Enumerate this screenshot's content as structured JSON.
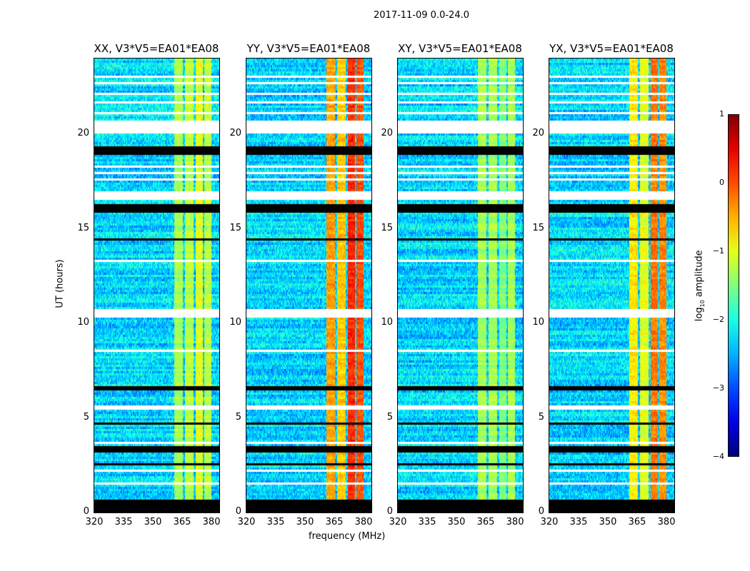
{
  "chart_data": {
    "type": "heatmap",
    "suptitle": "2017-11-09 0.0-24.0",
    "xlabel": "frequency (MHz)",
    "ylabel": "UT (hours)",
    "xlim": [
      320,
      384
    ],
    "ylim": [
      0,
      24
    ],
    "xticks": [
      "320",
      "335",
      "350",
      "365",
      "380"
    ],
    "xtick_values": [
      320,
      335,
      350,
      365,
      380
    ],
    "yticks": [
      "0",
      "5",
      "10",
      "15",
      "20"
    ],
    "ytick_values": [
      0,
      5,
      10,
      15,
      20
    ],
    "colorbar": {
      "label": "log10 amplitude",
      "label_main": "log",
      "label_sub": "10",
      "label_rest": " amplitude",
      "range": [
        -4,
        1
      ],
      "ticks": [
        "1",
        "0",
        "−1",
        "−2",
        "−3",
        "−4"
      ],
      "tick_values": [
        1,
        0,
        -1,
        -2,
        -3,
        -4
      ],
      "colormap": "jet"
    },
    "background_level": -2.3,
    "rfi_bands_mhz": [
      [
        361,
        365.5
      ],
      [
        366.5,
        371
      ],
      [
        372,
        375.5
      ],
      [
        376.5,
        380
      ]
    ],
    "flagged_zero_hours": [
      [
        0,
        0.7
      ],
      [
        2.5,
        2.6
      ],
      [
        3.2,
        3.5
      ],
      [
        4.6,
        4.7
      ],
      [
        6.4,
        6.7
      ],
      [
        14.4,
        14.5
      ],
      [
        15.9,
        16.3
      ],
      [
        18.9,
        19.4
      ]
    ],
    "missing_hours": [
      [
        1.0,
        1.05
      ],
      [
        1.5,
        1.55
      ],
      [
        1.8,
        1.85
      ],
      [
        2.2,
        2.25
      ],
      [
        3.6,
        3.7
      ],
      [
        5.4,
        5.65
      ],
      [
        8.5,
        8.6
      ],
      [
        10.3,
        10.7
      ],
      [
        13.3,
        13.35
      ],
      [
        16.5,
        17.0
      ],
      [
        17.6,
        17.7
      ],
      [
        17.9,
        18.0
      ],
      [
        18.2,
        18.3
      ],
      [
        20.0,
        20.7
      ],
      [
        21.1,
        21.2
      ],
      [
        21.6,
        21.7
      ],
      [
        22.1,
        22.2
      ],
      [
        22.6,
        22.7
      ],
      [
        23.0,
        23.1
      ],
      [
        23.5,
        23.6
      ]
    ],
    "panels": [
      {
        "title": "XX, V3*V5=EA01*EA08",
        "rfi_levels": [
          -1.3,
          -1.2,
          -1.0,
          -1.2
        ]
      },
      {
        "title": "YY, V3*V5=EA01*EA08",
        "rfi_levels": [
          -0.4,
          -0.6,
          0.2,
          0.0
        ]
      },
      {
        "title": "XY, V3*V5=EA01*EA08",
        "rfi_levels": [
          -1.3,
          -1.3,
          -1.5,
          -1.3
        ]
      },
      {
        "title": "YX, V3*V5=EA01*EA08",
        "rfi_levels": [
          -0.8,
          -1.0,
          -0.2,
          -0.3
        ]
      }
    ]
  }
}
